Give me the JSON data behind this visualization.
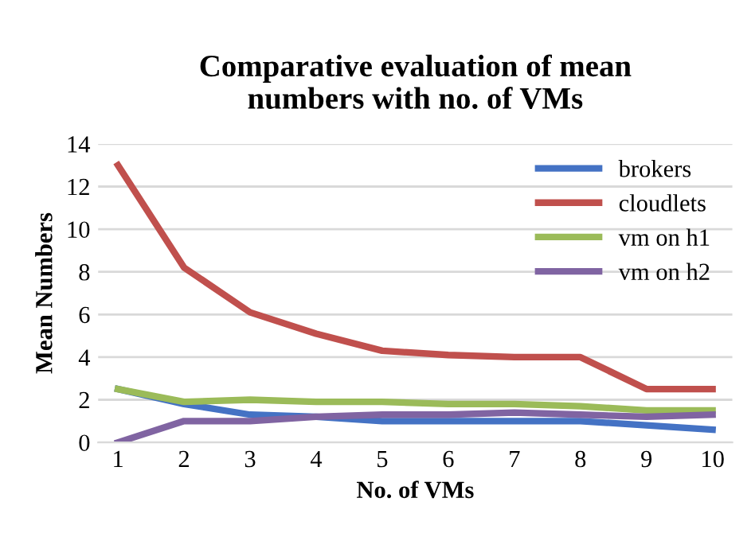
{
  "chart_data": {
    "type": "line",
    "title": "Comparative evaluation of mean\nnumbers with no. of VMs",
    "xlabel": "No. of VMs",
    "ylabel": "Mean Numbers",
    "categories": [
      "1",
      "2",
      "3",
      "4",
      "5",
      "6",
      "7",
      "8",
      "9",
      "10"
    ],
    "series": [
      {
        "name": "brokers",
        "color": "#4472c4",
        "values": [
          2.5,
          1.8,
          1.3,
          1.2,
          1.0,
          1.0,
          1.0,
          1.0,
          0.8,
          0.6
        ]
      },
      {
        "name": "cloudlets",
        "color": "#c0504d",
        "values": [
          13,
          8.2,
          6.1,
          5.1,
          4.3,
          4.1,
          4.0,
          4.0,
          2.5,
          2.5
        ]
      },
      {
        "name": "vm on h1",
        "color": "#9bbb59",
        "values": [
          2.5,
          1.9,
          2.0,
          1.9,
          1.9,
          1.8,
          1.8,
          1.7,
          1.5,
          1.5
        ]
      },
      {
        "name": "vm on h2",
        "color": "#8064a2",
        "values": [
          0,
          1.0,
          1.0,
          1.2,
          1.3,
          1.3,
          1.4,
          1.3,
          1.2,
          1.3
        ]
      }
    ],
    "ylim": [
      0,
      14
    ],
    "yticks": [
      0,
      2,
      4,
      6,
      8,
      10,
      12,
      14
    ],
    "grid": "y",
    "legend": "top right",
    "marker": "none",
    "line_style": "solid"
  }
}
